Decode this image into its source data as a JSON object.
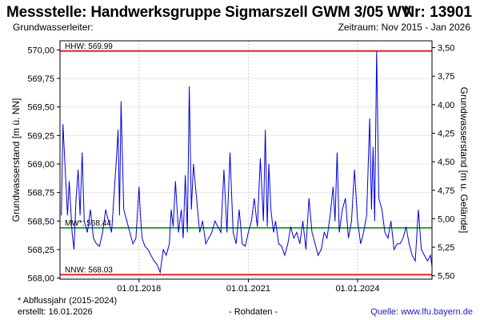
{
  "header": {
    "title": "Messstelle: Handwerksgruppe Sigmarszell GWM 3/05 WV",
    "number": "Nr: 13901",
    "aquifer_label": "Grundwasserleiter:",
    "period": "Zeitraum: Nov 2015 - Jan 2026"
  },
  "footer": {
    "footnote": "* Abflussjahr (2015-2024)",
    "created": "erstellt:  16.01.2026",
    "rawdata": "- Rohdaten -",
    "source": "Quelle:  www.lfu.bayern.de"
  },
  "colors": {
    "series": "#0000dd",
    "extreme_lines": "#ff0000",
    "mean_line": "#009900",
    "grid": "#cccccc"
  },
  "chart_data": {
    "type": "line",
    "title": "",
    "ylabel": "Grundwasserstand [m ü. NN]",
    "ylabel_right": "Grundwasserstand [m u. Gelände]",
    "xlim": [
      "2015-11-01",
      "2026-01-16"
    ],
    "ylim": [
      567.99,
      570.08
    ],
    "ylim_right": [
      5.53,
      3.44
    ],
    "yticks": [
      "568,00",
      "568,25",
      "568,50",
      "568,75",
      "569,00",
      "569,25",
      "569,50",
      "569,75",
      "570,00"
    ],
    "yticks_right": [
      "3,50",
      "3,75",
      "4,00",
      "4,25",
      "4,50",
      "4,75",
      "5,00",
      "5,25",
      "5,50"
    ],
    "xticks": [
      "01.01.2018",
      "01.01.2021",
      "01.01.2024"
    ],
    "grid": true,
    "reference_lines": [
      {
        "label": "HHW: 569.99",
        "value": 569.99,
        "color": "red"
      },
      {
        "label": "MW*: 568.44",
        "value": 568.44,
        "color": "green"
      },
      {
        "label": "NNW: 568.03",
        "value": 568.03,
        "color": "red"
      }
    ],
    "series": [
      {
        "x": [
          "2015-11-15",
          "2015-12-01",
          "2016-01-01",
          "2016-01-15",
          "2016-02-01",
          "2016-03-01",
          "2016-03-20",
          "2016-04-10",
          "2016-05-01",
          "2016-05-20",
          "2016-06-10",
          "2016-07-01",
          "2016-08-01",
          "2016-09-01",
          "2016-10-01",
          "2016-11-01",
          "2016-12-01",
          "2017-01-01",
          "2017-02-01",
          "2017-03-01",
          "2017-04-01",
          "2017-05-01",
          "2017-05-20",
          "2017-06-05",
          "2017-06-20",
          "2017-07-05",
          "2017-08-01",
          "2017-09-01",
          "2017-10-01",
          "2017-11-01",
          "2017-12-01",
          "2018-01-01",
          "2018-01-15",
          "2018-02-01",
          "2018-03-01",
          "2018-04-01",
          "2018-05-01",
          "2018-06-01",
          "2018-07-01",
          "2018-08-01",
          "2018-09-01",
          "2018-10-01",
          "2018-11-01",
          "2018-11-20",
          "2018-12-10",
          "2019-01-01",
          "2019-02-01",
          "2019-03-01",
          "2019-03-20",
          "2019-04-10",
          "2019-05-01",
          "2019-05-20",
          "2019-06-10",
          "2019-07-01",
          "2019-08-01",
          "2019-09-01",
          "2019-10-01",
          "2019-11-01",
          "2019-12-01",
          "2020-01-01",
          "2020-02-01",
          "2020-03-01",
          "2020-04-01",
          "2020-05-01",
          "2020-06-01",
          "2020-07-01",
          "2020-08-01",
          "2020-09-01",
          "2020-10-01",
          "2020-11-01",
          "2020-12-01",
          "2021-01-01",
          "2021-02-01",
          "2021-03-01",
          "2021-04-01",
          "2021-05-01",
          "2021-06-01",
          "2021-06-20",
          "2021-07-10",
          "2021-07-25",
          "2021-08-15",
          "2021-09-10",
          "2021-10-01",
          "2021-11-01",
          "2021-12-01",
          "2022-01-01",
          "2022-02-01",
          "2022-03-01",
          "2022-04-01",
          "2022-05-01",
          "2022-06-01",
          "2022-07-01",
          "2022-08-01",
          "2022-09-01",
          "2022-10-01",
          "2022-11-01",
          "2022-12-01",
          "2023-01-01",
          "2023-02-01",
          "2023-03-01",
          "2023-04-01",
          "2023-05-01",
          "2023-05-20",
          "2023-06-10",
          "2023-07-01",
          "2023-08-01",
          "2023-09-01",
          "2023-10-01",
          "2023-11-01",
          "2023-12-01",
          "2024-01-01",
          "2024-02-01",
          "2024-03-01",
          "2024-04-01",
          "2024-05-01",
          "2024-05-20",
          "2024-06-05",
          "2024-06-20",
          "2024-07-10",
          "2024-08-01",
          "2024-09-01",
          "2024-10-01",
          "2024-11-01",
          "2024-12-01",
          "2025-01-01",
          "2025-02-01",
          "2025-03-01",
          "2025-04-01",
          "2025-05-01",
          "2025-06-01",
          "2025-07-01",
          "2025-08-01",
          "2025-09-01",
          "2025-10-01",
          "2025-11-01",
          "2025-12-01",
          "2026-01-01",
          "2026-01-16"
        ],
        "y": [
          568.55,
          569.35,
          568.8,
          568.55,
          568.85,
          568.4,
          568.25,
          568.7,
          568.95,
          568.55,
          569.1,
          568.5,
          568.4,
          568.6,
          568.35,
          568.3,
          568.28,
          568.4,
          568.6,
          568.5,
          568.4,
          568.8,
          569.05,
          569.3,
          568.55,
          569.55,
          568.6,
          568.5,
          568.4,
          568.3,
          568.35,
          568.8,
          568.55,
          568.35,
          568.28,
          568.25,
          568.2,
          568.15,
          568.12,
          568.05,
          568.25,
          568.2,
          568.3,
          568.6,
          568.45,
          568.85,
          568.4,
          568.6,
          568.35,
          568.9,
          568.4,
          569.68,
          568.6,
          569.0,
          568.7,
          568.4,
          568.5,
          568.3,
          568.35,
          568.4,
          568.5,
          568.45,
          568.4,
          568.95,
          568.4,
          569.1,
          568.4,
          568.3,
          568.6,
          568.3,
          568.28,
          568.4,
          568.5,
          568.7,
          568.45,
          569.05,
          568.5,
          569.3,
          568.45,
          569.0,
          568.6,
          568.4,
          568.5,
          568.3,
          568.28,
          568.2,
          568.3,
          568.45,
          568.35,
          568.4,
          568.3,
          568.5,
          568.25,
          568.7,
          568.4,
          568.3,
          568.2,
          568.25,
          568.4,
          568.35,
          568.55,
          568.8,
          568.5,
          569.1,
          568.4,
          568.6,
          568.7,
          568.35,
          568.5,
          568.95,
          568.5,
          568.3,
          568.4,
          568.55,
          569.4,
          568.6,
          569.15,
          568.5,
          569.99,
          568.7,
          568.6,
          568.4,
          568.35,
          568.5,
          568.25,
          568.3,
          568.3,
          568.35,
          568.45,
          568.3,
          568.2,
          568.15,
          568.6,
          568.25,
          568.2,
          568.15,
          568.2,
          568.1
        ]
      }
    ]
  }
}
